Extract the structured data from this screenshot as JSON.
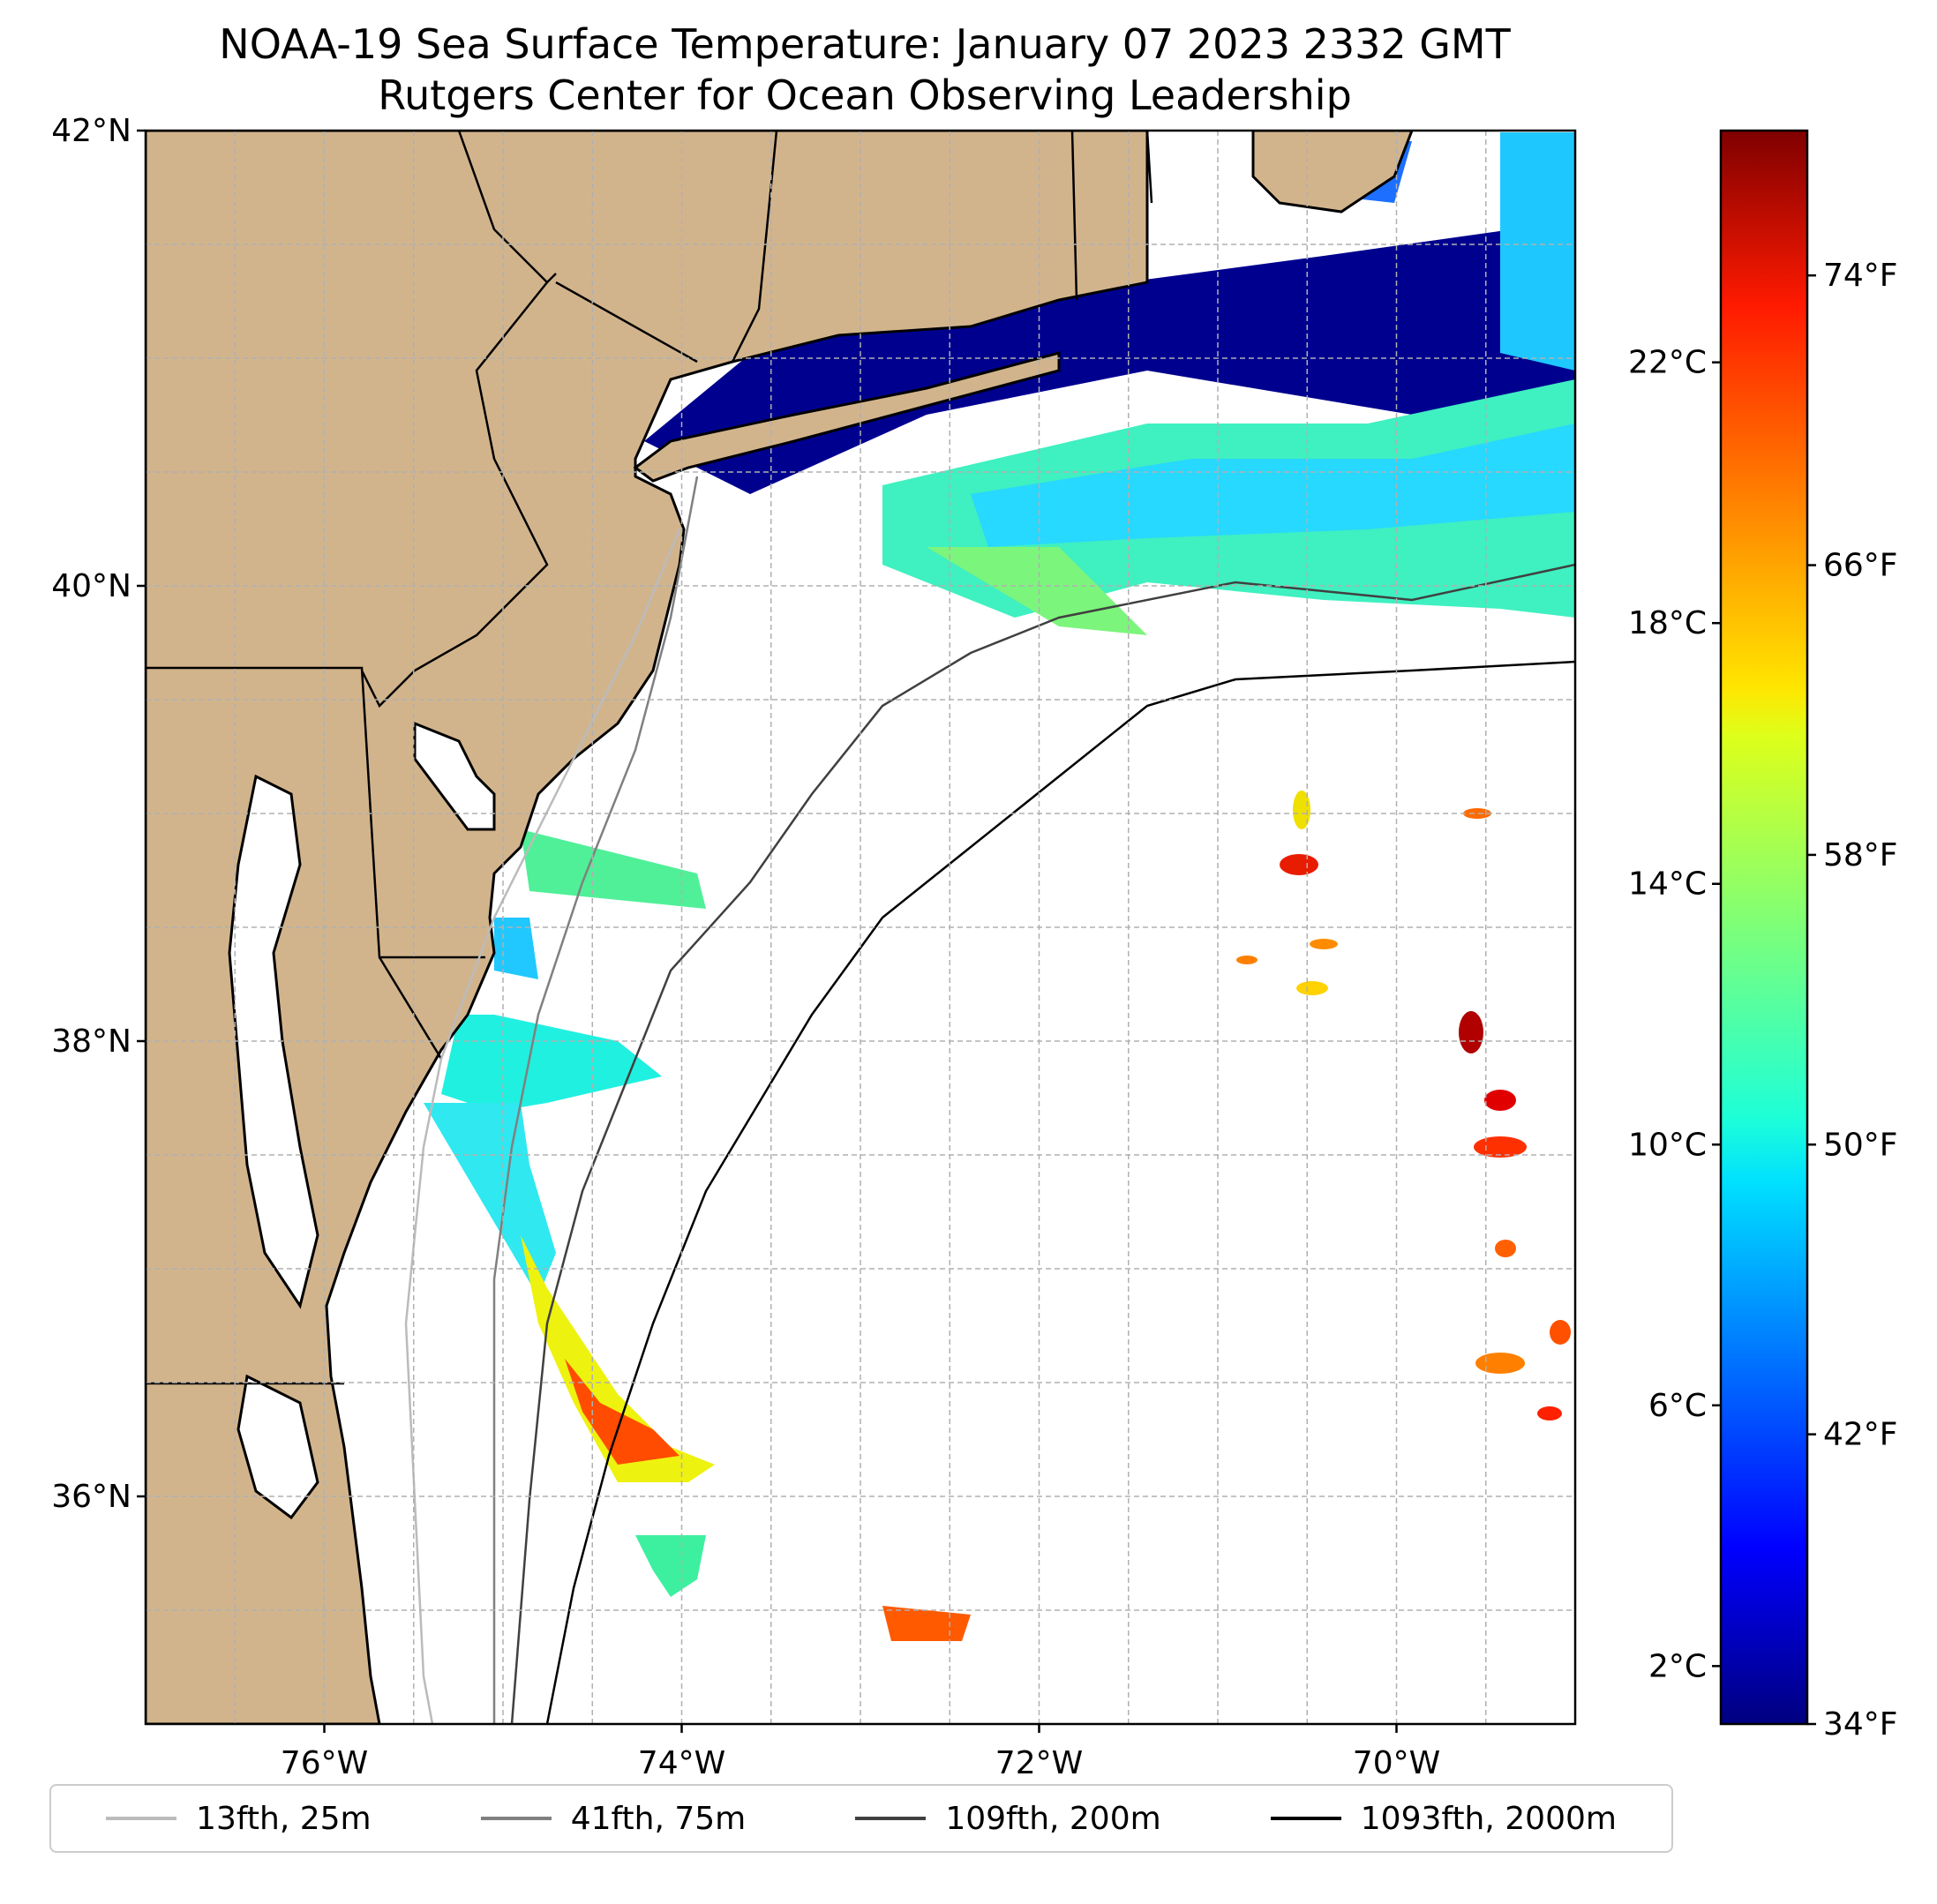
{
  "title": "NOAA-19 Sea Surface Temperature: January 07 2023 2332 GMT",
  "subtitle": "Rutgers Center for Ocean Observing Leadership",
  "map": {
    "lat_range": [
      35,
      42
    ],
    "lon_range": [
      -77,
      -69
    ],
    "lat_ticks": [
      {
        "value": 42,
        "label": "42°N"
      },
      {
        "value": 40,
        "label": "40°N"
      },
      {
        "value": 38,
        "label": "38°N"
      },
      {
        "value": 36,
        "label": "36°N"
      }
    ],
    "lon_ticks": [
      {
        "value": -76,
        "label": "76°W"
      },
      {
        "value": -74,
        "label": "74°W"
      },
      {
        "value": -72,
        "label": "72°W"
      },
      {
        "value": -70,
        "label": "70°W"
      }
    ],
    "grid": true,
    "land_color": "#d2b48c",
    "states": [
      "New York",
      "Connecticut",
      "Rhode Island",
      "Massachusetts",
      "Pennsylvania",
      "New Jersey",
      "Delaware",
      "Maryland",
      "Virginia",
      "North Carolina"
    ]
  },
  "colorbar": {
    "colormap": "jet",
    "range_f": [
      34,
      78
    ],
    "celsius_ticks": [
      {
        "value": 2,
        "label": "2°C"
      },
      {
        "value": 6,
        "label": "6°C"
      },
      {
        "value": 10,
        "label": "10°C"
      },
      {
        "value": 14,
        "label": "14°C"
      },
      {
        "value": 18,
        "label": "18°C"
      },
      {
        "value": 22,
        "label": "22°C"
      }
    ],
    "fahrenheit_ticks": [
      {
        "value": 34,
        "label": "34°F"
      },
      {
        "value": 42,
        "label": "42°F"
      },
      {
        "value": 50,
        "label": "50°F"
      },
      {
        "value": 58,
        "label": "58°F"
      },
      {
        "value": 66,
        "label": "66°F"
      },
      {
        "value": 74,
        "label": "74°F"
      }
    ]
  },
  "legend": [
    {
      "label": "13fth, 25m",
      "color": "#bbbbbb"
    },
    {
      "label": "41fth, 75m",
      "color": "#808080"
    },
    {
      "label": "109fth, 200m",
      "color": "#404040"
    },
    {
      "label": "1093fth, 2000m",
      "color": "#000000"
    }
  ]
}
